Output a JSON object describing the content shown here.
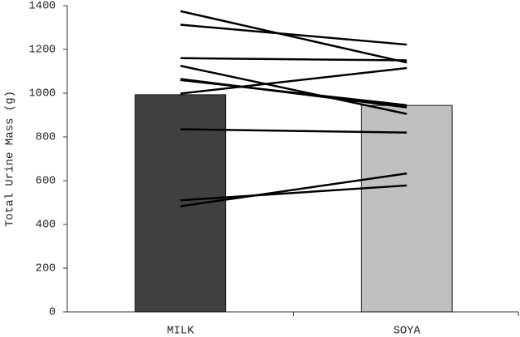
{
  "chart_data": {
    "type": "bar",
    "y_label": "Total Urine Mass (g)",
    "categories": [
      "MILK",
      "SOYA"
    ],
    "values": [
      993,
      944
    ],
    "colors": [
      "#404040",
      "#c0c0c0"
    ],
    "paired_values": [
      [
        1375,
        1140
      ],
      [
        1313,
        1222
      ],
      [
        1160,
        1150
      ],
      [
        1125,
        905
      ],
      [
        1065,
        935
      ],
      [
        1060,
        945
      ],
      [
        998,
        1115
      ],
      [
        835,
        820
      ],
      [
        510,
        578
      ],
      [
        483,
        633
      ]
    ],
    "line_color": "#000000",
    "ylim": [
      0,
      1400
    ],
    "yticks": [
      0,
      200,
      400,
      600,
      800,
      1000,
      1200,
      1400
    ]
  }
}
